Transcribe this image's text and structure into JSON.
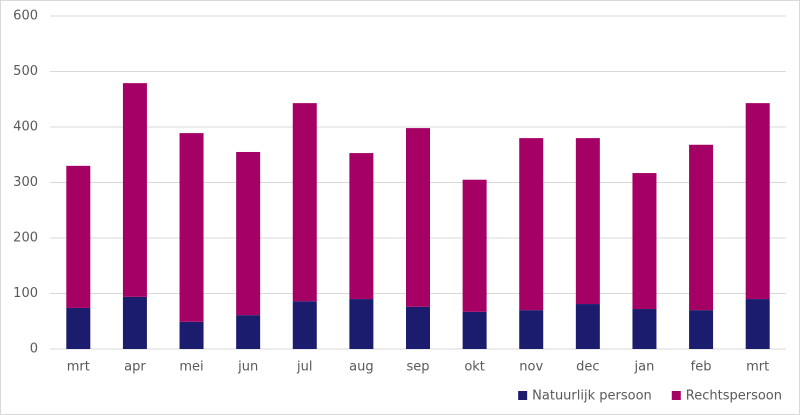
{
  "chart_data": {
    "type": "stacked-bar",
    "categories": [
      "mrt",
      "apr",
      "mei",
      "jun",
      "jul",
      "aug",
      "sep",
      "okt",
      "nov",
      "dec",
      "jan",
      "feb",
      "mrt"
    ],
    "series": [
      {
        "name": "Natuurlijk persoon",
        "color": "#1c1c6e",
        "values": [
          74,
          94,
          49,
          61,
          86,
          90,
          76,
          67,
          70,
          81,
          72,
          70,
          90
        ]
      },
      {
        "name": "Rechtspersoon",
        "color": "#a50064",
        "values": [
          256,
          385,
          340,
          294,
          357,
          263,
          322,
          238,
          310,
          299,
          245,
          298,
          353
        ]
      }
    ],
    "ylim": [
      0,
      600
    ],
    "yticks": [
      0,
      100,
      200,
      300,
      400,
      500,
      600
    ],
    "grid": true,
    "legend": "bottom-right"
  }
}
